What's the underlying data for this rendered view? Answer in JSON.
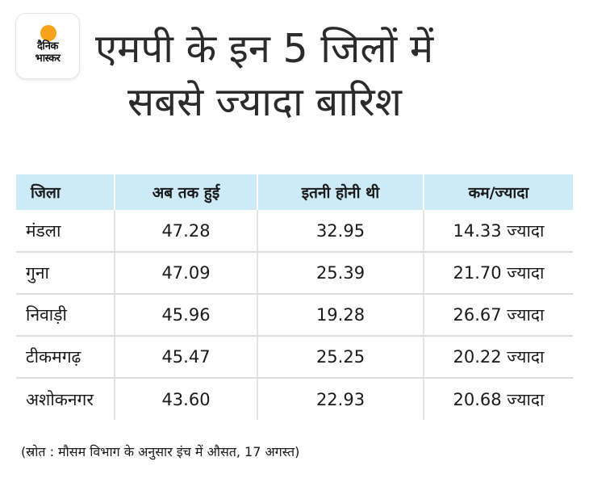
{
  "brand": {
    "line1": "दैनिक",
    "line2": "भास्कर",
    "accent_color": "#f6a21a"
  },
  "title": {
    "line1": "एमपी के इन 5 जिलों में",
    "line2": "सबसे ज्यादा बारिश"
  },
  "table": {
    "header_color": "#cdeaf7",
    "columns": [
      "जिला",
      "अब तक हुई",
      "इतनी होनी थी",
      "कम/ज्यादा"
    ],
    "rows": [
      [
        "मंडला",
        "47.28",
        "32.95",
        "14.33 ज्यादा"
      ],
      [
        "गुना",
        "47.09",
        "25.39",
        "21.70 ज्यादा"
      ],
      [
        "निवाड़ी",
        "45.96",
        "19.28",
        "26.67 ज्यादा"
      ],
      [
        "टीकमगढ़",
        "45.47",
        "25.25",
        "20.22 ज्यादा"
      ],
      [
        "अशोकनगर",
        "43.60",
        "22.93",
        "20.68 ज्यादा"
      ]
    ]
  },
  "source": "(स्रोत : मौसम विभाग के अनुसार इंच में औसत, 17 अगस्त)"
}
